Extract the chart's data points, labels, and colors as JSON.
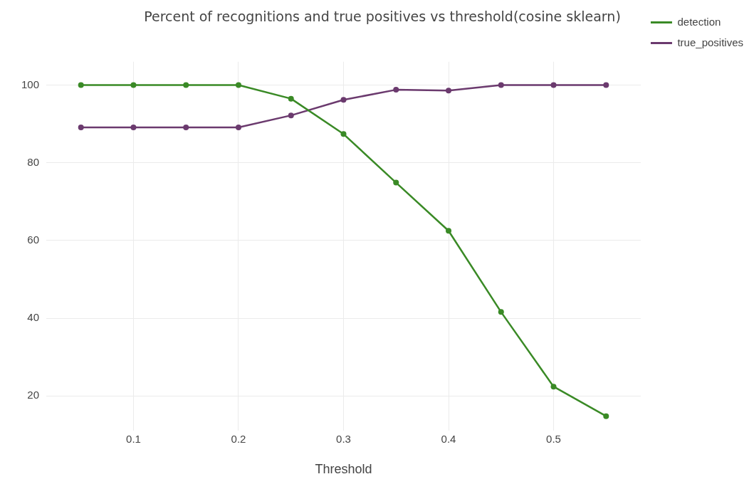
{
  "chart_data": {
    "type": "line",
    "title": "Percent of recognitions and true positives vs threshold(cosine sklearn)",
    "xlabel": "Threshold",
    "x": [
      0.05,
      0.1,
      0.15,
      0.2,
      0.25,
      0.3,
      0.35,
      0.4,
      0.45,
      0.5,
      0.55
    ],
    "series": [
      {
        "name": "detection",
        "color": "#3a8a26",
        "values": [
          100,
          100,
          100,
          100,
          96.5,
          87.4,
          74.9,
          62.5,
          41.6,
          22.4,
          14.8
        ]
      },
      {
        "name": "true_positives",
        "color": "#6b3a6e",
        "values": [
          89.1,
          89.1,
          89.1,
          89.1,
          92.2,
          96.2,
          98.8,
          98.6,
          100,
          100,
          100
        ]
      }
    ],
    "xlim": [
      0.017,
      0.583
    ],
    "xticks": [
      0.1,
      0.2,
      0.3,
      0.4,
      0.5
    ],
    "ylim": [
      11,
      106
    ],
    "yticks": [
      20,
      40,
      60,
      80,
      100
    ],
    "grid": true,
    "legend": "top right",
    "marker": "circle",
    "line_style": "solid"
  }
}
